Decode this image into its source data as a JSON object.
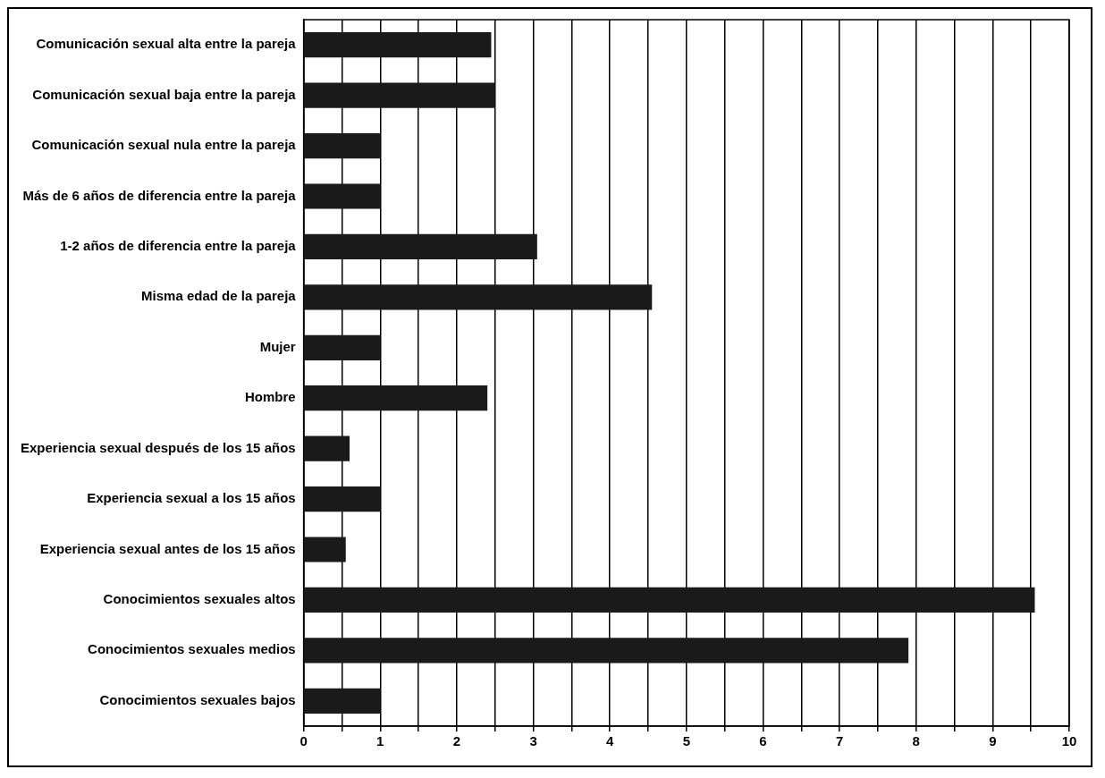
{
  "chart_data": {
    "type": "bar",
    "orientation": "horizontal",
    "categories": [
      "Comunicación sexual alta entre la pareja",
      "Comunicación sexual baja entre la pareja",
      "Comunicación sexual nula entre la pareja",
      "Más de 6 años de diferencia entre la pareja",
      "1-2 años de diferencia entre la pareja",
      "Misma edad de la pareja",
      "Mujer",
      "Hombre",
      "Experiencia sexual después de los 15 años",
      "Experiencia sexual a los 15 años",
      "Experiencia sexual antes de los 15 años",
      "Conocimientos sexuales altos",
      "Conocimientos sexuales medios",
      "Conocimientos sexuales bajos"
    ],
    "values": [
      2.45,
      2.5,
      1.0,
      1.0,
      3.05,
      4.55,
      1.0,
      2.4,
      0.6,
      1.0,
      0.55,
      9.55,
      7.9,
      1.0
    ],
    "color": "#1a1a1a",
    "xlim": [
      0,
      10
    ],
    "xticks": [
      0,
      {
        "value": 0.5,
        "label": null
      },
      1,
      {
        "value": 1.5,
        "label": null
      },
      2,
      {
        "value": 2.5,
        "label": null
      },
      3,
      {
        "value": 3.5,
        "label": null
      },
      4,
      {
        "value": 4.5,
        "label": null
      },
      5,
      {
        "value": 5.5,
        "label": null
      },
      6,
      {
        "value": 6.5,
        "label": null
      },
      7,
      {
        "value": 7.5,
        "label": null
      },
      8,
      {
        "value": 8.5,
        "label": null
      },
      9,
      {
        "value": 9.5,
        "label": null
      },
      10
    ],
    "grid": "x",
    "legend": false
  }
}
